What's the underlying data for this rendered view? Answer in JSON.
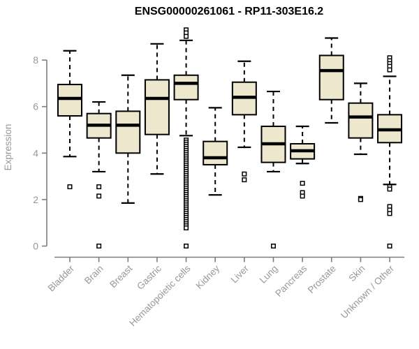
{
  "title": "ENSG00000261061 - RP11-303E16.2",
  "chart_data": {
    "type": "boxplot",
    "title": "ENSG00000261061 - RP11-303E16.2",
    "xlabel": "",
    "ylabel": "Expression",
    "ylim": [
      0,
      9.5
    ],
    "yticks": [
      0,
      2,
      4,
      6,
      8
    ],
    "grid": false,
    "legend": "none",
    "categories": [
      "Bladder",
      "Brain",
      "Breast",
      "Gastric",
      "Hematopoietic cells",
      "Kidney",
      "Liver",
      "Lung",
      "Pancreas",
      "Prostate",
      "Skin",
      "Unknown / Other"
    ],
    "series": [
      {
        "category": "Bladder",
        "whisker_low": 3.85,
        "q1": 5.6,
        "median": 6.35,
        "q3": 6.95,
        "whisker_high": 8.4,
        "outliers": [
          2.55
        ]
      },
      {
        "category": "Brain",
        "whisker_low": 3.2,
        "q1": 4.65,
        "median": 5.2,
        "q3": 5.7,
        "whisker_high": 6.2,
        "outliers": [
          2.55,
          2.15,
          0
        ]
      },
      {
        "category": "Breast",
        "whisker_low": 1.85,
        "q1": 4.0,
        "median": 5.2,
        "q3": 5.8,
        "whisker_high": 7.35,
        "outliers": []
      },
      {
        "category": "Gastric",
        "whisker_low": 3.1,
        "q1": 4.8,
        "median": 6.35,
        "q3": 7.15,
        "whisker_high": 8.7,
        "outliers": []
      },
      {
        "category": "Hematopoietic cells",
        "whisker_low": 4.75,
        "q1": 6.3,
        "median": 7.0,
        "q3": 7.35,
        "whisker_high": 8.85,
        "outliers": [
          9.3,
          9.17,
          9.02,
          4.56,
          4.47,
          4.38,
          4.29,
          4.2,
          4.11,
          4.02,
          3.93,
          3.84,
          3.75,
          3.66,
          3.57,
          3.48,
          3.39,
          3.3,
          3.21,
          3.12,
          3.03,
          2.94,
          2.85,
          2.76,
          2.67,
          2.58,
          2.49,
          2.4,
          2.31,
          2.22,
          2.13,
          2.04,
          1.95,
          1.86,
          1.77,
          1.68,
          1.59,
          1.5,
          1.41,
          1.32,
          1.23,
          1.14,
          1.05,
          0.96,
          0.87,
          0.78,
          0
        ]
      },
      {
        "category": "Kidney",
        "whisker_low": 2.2,
        "q1": 3.5,
        "median": 3.8,
        "q3": 4.5,
        "whisker_high": 5.95,
        "outliers": []
      },
      {
        "category": "Liver",
        "whisker_low": 4.25,
        "q1": 5.65,
        "median": 6.4,
        "q3": 7.05,
        "whisker_high": 7.95,
        "outliers": [
          3.1,
          2.85
        ]
      },
      {
        "category": "Lung",
        "whisker_low": 3.2,
        "q1": 3.6,
        "median": 4.4,
        "q3": 5.15,
        "whisker_high": 6.65,
        "outliers": [
          0
        ]
      },
      {
        "category": "Pancreas",
        "whisker_low": 3.55,
        "q1": 3.75,
        "median": 4.1,
        "q3": 4.4,
        "whisker_high": 5.15,
        "outliers": [
          2.7,
          2.3,
          2.15
        ]
      },
      {
        "category": "Prostate",
        "whisker_low": 5.3,
        "q1": 6.3,
        "median": 7.55,
        "q3": 8.2,
        "whisker_high": 8.95,
        "outliers": []
      },
      {
        "category": "Skin",
        "whisker_low": 3.95,
        "q1": 4.65,
        "median": 5.55,
        "q3": 6.15,
        "whisker_high": 7.0,
        "outliers": [
          2.05,
          2.0
        ]
      },
      {
        "category": "Unknown / Other",
        "whisker_low": 2.65,
        "q1": 4.45,
        "median": 5.0,
        "q3": 5.65,
        "whisker_high": 7.3,
        "outliers": [
          8.1,
          7.97,
          7.85,
          7.73,
          7.58,
          2.55,
          2.45,
          1.7,
          1.55,
          1.4,
          0
        ]
      }
    ],
    "colors": {
      "box_fill": "#ece7cd",
      "box_border": "#000000",
      "median": "#000000",
      "whisker": "#000000",
      "outlier_fill": "#ffffff",
      "axis": "#7d7d7d",
      "tick_text": "#989898",
      "title_text": "#000000",
      "background": "#ffffff"
    }
  }
}
